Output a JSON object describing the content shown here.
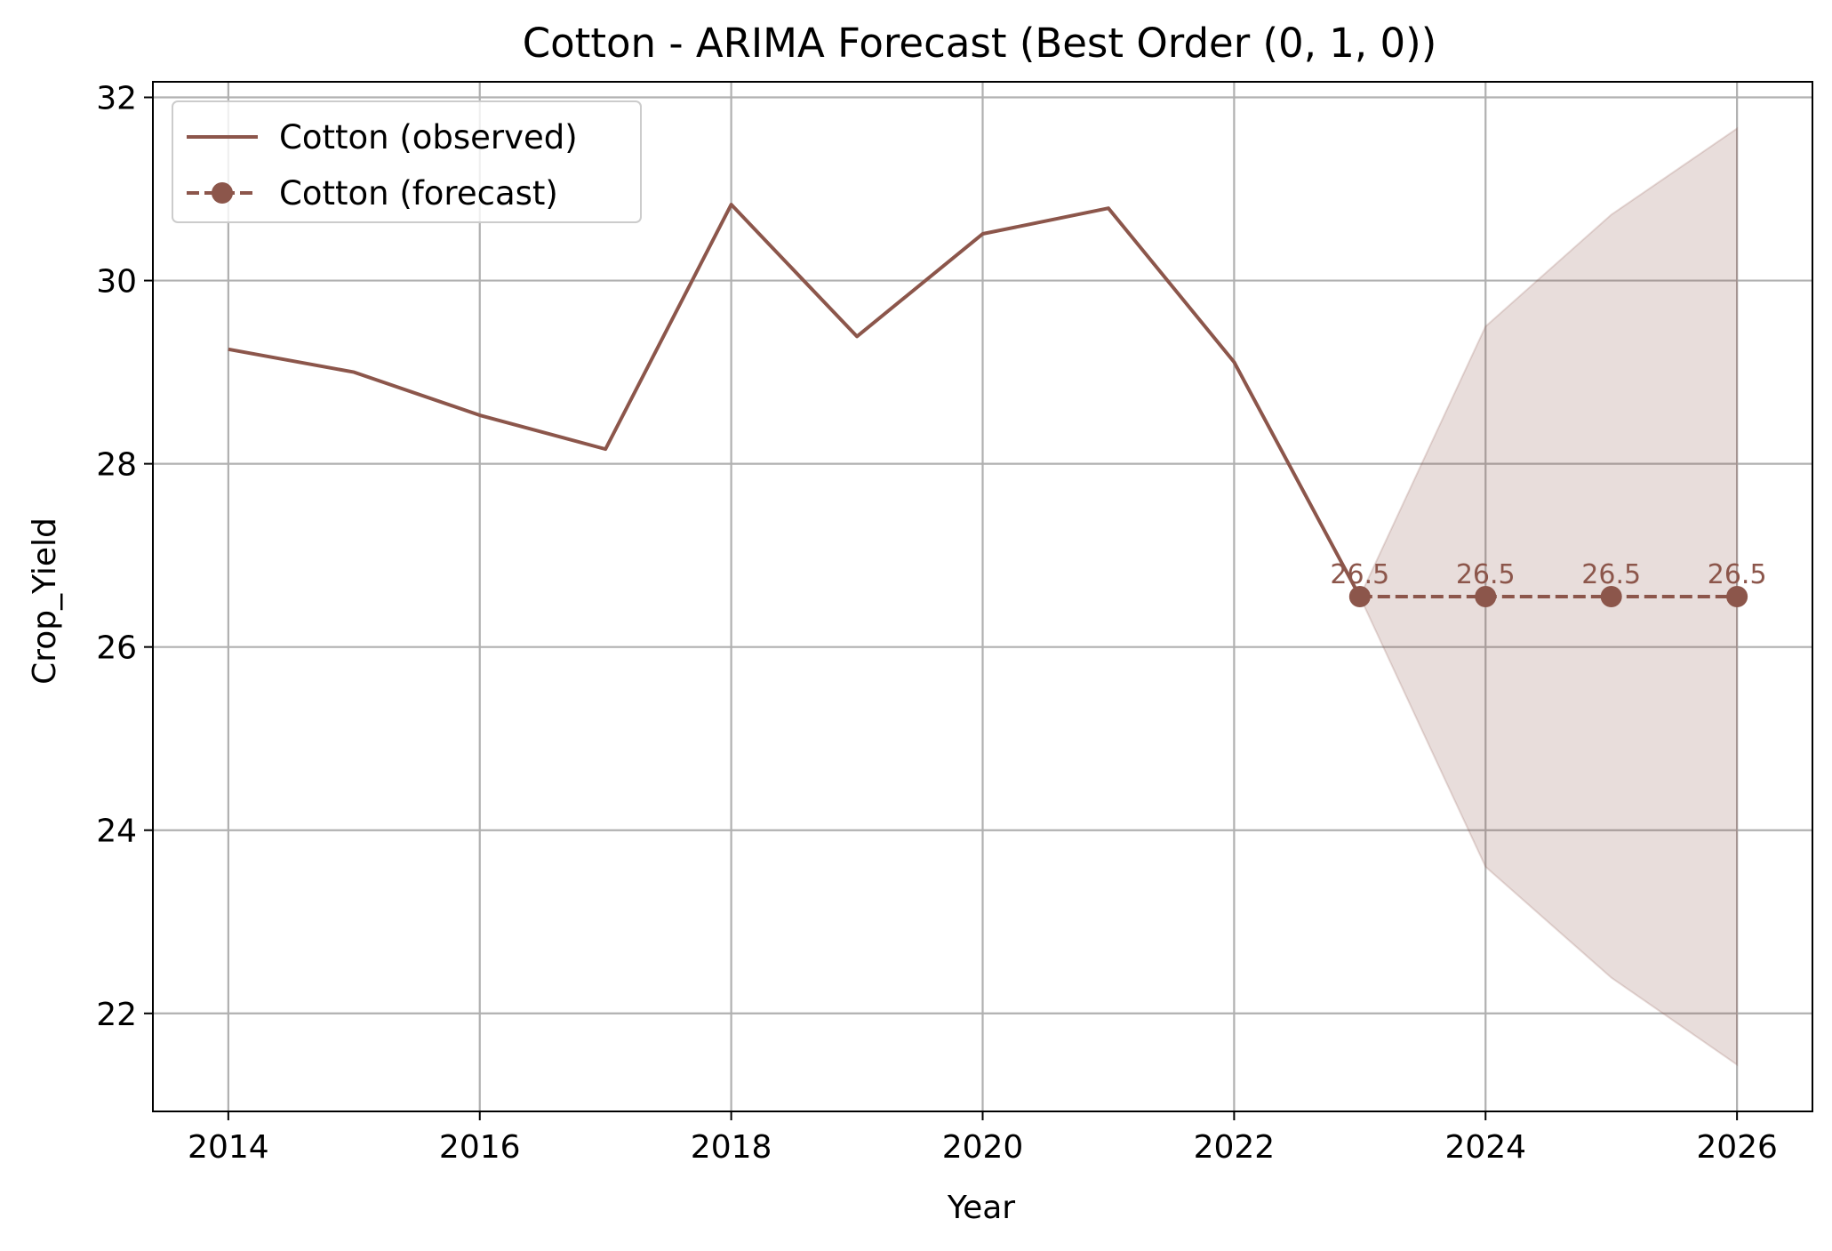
{
  "chart_data": {
    "type": "line",
    "title": "Cotton - ARIMA Forecast (Best Order (0, 1, 0))",
    "xlabel": "Year",
    "ylabel": "Crop_Yield",
    "xlim": [
      2013.4,
      2026.6
    ],
    "ylim": [
      20.93,
      32.17
    ],
    "xticks": [
      2014,
      2016,
      2018,
      2020,
      2022,
      2024,
      2026
    ],
    "yticks": [
      22,
      24,
      26,
      28,
      30,
      32
    ],
    "grid": true,
    "legend_position": "top-left",
    "color": "#8c564b",
    "series": [
      {
        "name": "Cotton (observed)",
        "style": "solid",
        "x": [
          2014,
          2015,
          2016,
          2017,
          2018,
          2019,
          2020,
          2021,
          2022,
          2023
        ],
        "y": [
          29.25,
          29.0,
          28.53,
          28.16,
          30.83,
          29.39,
          30.51,
          30.79,
          29.11,
          26.55
        ]
      },
      {
        "name": "Cotton (forecast)",
        "style": "dashed",
        "marker": "circle",
        "x": [
          2023,
          2024,
          2025,
          2026
        ],
        "y": [
          26.55,
          26.55,
          26.55,
          26.55
        ],
        "labels": [
          "26.5",
          "26.5",
          "26.5",
          "26.5"
        ]
      }
    ],
    "confidence_band": {
      "x": [
        2023,
        2024,
        2025,
        2026
      ],
      "lower": [
        26.55,
        23.6,
        22.39,
        21.44
      ],
      "upper": [
        26.55,
        29.5,
        30.72,
        31.66
      ]
    }
  }
}
